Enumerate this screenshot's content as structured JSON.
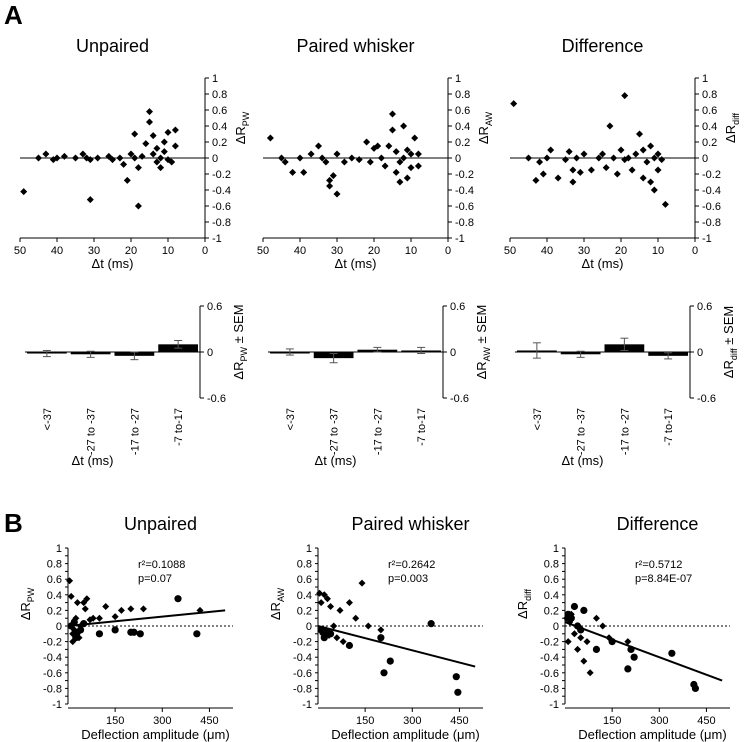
{
  "panels": {
    "a": "A",
    "b": "B"
  },
  "chart_data": [
    {
      "type": "scatter",
      "title": "Unpaired",
      "xlabel": "Δt (ms)",
      "ylabel": "ΔR",
      "ylabel_sub": "PW",
      "xlim": [
        50,
        0
      ],
      "xticks": [
        50,
        40,
        30,
        20,
        10,
        0
      ],
      "ylim": [
        -1,
        1
      ],
      "yticks": [
        -1,
        -0.8,
        -0.6,
        -0.4,
        -0.2,
        0,
        0.2,
        0.4,
        0.6,
        0.8,
        1
      ],
      "points": [
        [
          49,
          -0.42
        ],
        [
          45,
          0.0
        ],
        [
          43,
          0.05
        ],
        [
          41,
          -0.02
        ],
        [
          40,
          0.0
        ],
        [
          38,
          0.02
        ],
        [
          35,
          0.0
        ],
        [
          33,
          0.05
        ],
        [
          32,
          0.0
        ],
        [
          31,
          -0.52
        ],
        [
          31,
          -0.02
        ],
        [
          29,
          0.0
        ],
        [
          26,
          0.02
        ],
        [
          25,
          -0.02
        ],
        [
          23,
          0.0
        ],
        [
          22,
          -0.08
        ],
        [
          21,
          -0.28
        ],
        [
          20,
          0.05
        ],
        [
          19,
          0.0
        ],
        [
          19,
          0.3
        ],
        [
          18,
          -0.12
        ],
        [
          18,
          -0.6
        ],
        [
          17,
          0.02
        ],
        [
          16,
          0.18
        ],
        [
          15,
          0.58
        ],
        [
          15,
          0.45
        ],
        [
          14,
          0.05
        ],
        [
          14,
          0.28
        ],
        [
          13,
          -0.05
        ],
        [
          13,
          0.12
        ],
        [
          12,
          0.0
        ],
        [
          12,
          -0.12
        ],
        [
          11,
          0.2
        ],
        [
          11,
          0.08
        ],
        [
          10,
          -0.02
        ],
        [
          10,
          0.32
        ],
        [
          9,
          -0.05
        ],
        [
          8,
          0.35
        ],
        [
          8,
          0.15
        ]
      ]
    },
    {
      "type": "scatter",
      "title": "Paired whisker",
      "xlabel": "Δt (ms)",
      "ylabel": "ΔR",
      "ylabel_sub": "AW",
      "xlim": [
        50,
        0
      ],
      "xticks": [
        50,
        40,
        30,
        20,
        10,
        0
      ],
      "ylim": [
        -1,
        1
      ],
      "yticks": [
        -1,
        -0.8,
        -0.6,
        -0.4,
        -0.2,
        0,
        0.2,
        0.4,
        0.6,
        0.8,
        1
      ],
      "points": [
        [
          48,
          0.25
        ],
        [
          45,
          0.0
        ],
        [
          44,
          -0.05
        ],
        [
          42,
          -0.18
        ],
        [
          40,
          0.0
        ],
        [
          39,
          -0.18
        ],
        [
          37,
          0.05
        ],
        [
          35,
          0.15
        ],
        [
          34,
          0.0
        ],
        [
          33,
          -0.05
        ],
        [
          32,
          -0.28
        ],
        [
          32,
          -0.35
        ],
        [
          31,
          -0.22
        ],
        [
          30,
          0.05
        ],
        [
          30,
          -0.45
        ],
        [
          28,
          -0.05
        ],
        [
          26,
          0.0
        ],
        [
          24,
          -0.02
        ],
        [
          22,
          0.2
        ],
        [
          21,
          -0.05
        ],
        [
          20,
          0.12
        ],
        [
          19,
          0.15
        ],
        [
          18,
          0.0
        ],
        [
          17,
          -0.1
        ],
        [
          16,
          0.15
        ],
        [
          15,
          0.35
        ],
        [
          15,
          0.55
        ],
        [
          14,
          -0.18
        ],
        [
          14,
          0.08
        ],
        [
          13,
          -0.3
        ],
        [
          13,
          -0.05
        ],
        [
          12,
          0.4
        ],
        [
          12,
          0.0
        ],
        [
          11,
          0.1
        ],
        [
          11,
          -0.25
        ],
        [
          10,
          0.05
        ],
        [
          10,
          -0.12
        ],
        [
          9,
          0.25
        ],
        [
          8,
          -0.1
        ],
        [
          8,
          0.05
        ]
      ]
    },
    {
      "type": "scatter",
      "title": "Difference",
      "xlabel": "Δt (ms)",
      "ylabel": "ΔR",
      "ylabel_sub": "diff",
      "xlim": [
        50,
        0
      ],
      "xticks": [
        50,
        40,
        30,
        20,
        10,
        0
      ],
      "ylim": [
        -1,
        1
      ],
      "yticks": [
        -1,
        -0.8,
        -0.6,
        -0.4,
        -0.2,
        0,
        0.2,
        0.4,
        0.6,
        0.8,
        1
      ],
      "points": [
        [
          49,
          0.68
        ],
        [
          45,
          0.0
        ],
        [
          43,
          -0.28
        ],
        [
          42,
          -0.05
        ],
        [
          41,
          -0.2
        ],
        [
          40,
          0.0
        ],
        [
          39,
          0.1
        ],
        [
          37,
          -0.25
        ],
        [
          35,
          -0.02
        ],
        [
          34,
          0.08
        ],
        [
          33,
          -0.15
        ],
        [
          33,
          -0.3
        ],
        [
          32,
          0.0
        ],
        [
          31,
          -0.18
        ],
        [
          30,
          0.05
        ],
        [
          28,
          -0.15
        ],
        [
          26,
          0.0
        ],
        [
          25,
          0.05
        ],
        [
          24,
          -0.12
        ],
        [
          23,
          0.4
        ],
        [
          22,
          0.0
        ],
        [
          21,
          -0.2
        ],
        [
          20,
          0.1
        ],
        [
          19,
          0.78
        ],
        [
          19,
          -0.02
        ],
        [
          18,
          0.0
        ],
        [
          17,
          -0.15
        ],
        [
          16,
          0.05
        ],
        [
          15,
          0.3
        ],
        [
          14,
          -0.25
        ],
        [
          14,
          0.1
        ],
        [
          13,
          -0.05
        ],
        [
          12,
          0.15
        ],
        [
          12,
          -0.3
        ],
        [
          11,
          0.0
        ],
        [
          11,
          -0.4
        ],
        [
          10,
          0.05
        ],
        [
          10,
          -0.15
        ],
        [
          9,
          -0.02
        ],
        [
          8,
          -0.58
        ]
      ]
    },
    {
      "type": "bar",
      "title": "",
      "xlabel": "Δt (ms)",
      "ylabel": "ΔR",
      "ylabel_sub": "PW",
      "ylabel_suffix": " ± SEM",
      "categories": [
        "<-37",
        "-27 to -37",
        "-17 to -27",
        "-7 to-17"
      ],
      "values": [
        -0.02,
        -0.03,
        -0.05,
        0.1
      ],
      "errors": [
        0.04,
        0.04,
        0.05,
        0.05
      ],
      "ylim": [
        -0.6,
        0.6
      ],
      "yticks": [
        -0.6,
        0,
        0.6
      ]
    },
    {
      "type": "bar",
      "title": "",
      "xlabel": "Δt (ms)",
      "ylabel": "ΔR",
      "ylabel_sub": "AW",
      "ylabel_suffix": " ± SEM",
      "categories": [
        "<-37",
        "-27 to -37",
        "-17 to -27",
        "-7 to-17"
      ],
      "values": [
        0.0,
        -0.08,
        0.03,
        0.02
      ],
      "errors": [
        0.04,
        0.06,
        0.03,
        0.04
      ],
      "ylim": [
        -0.6,
        0.6
      ],
      "yticks": [
        -0.6,
        0,
        0.6
      ]
    },
    {
      "type": "bar",
      "title": "",
      "xlabel": "Δt (ms)",
      "ylabel": "ΔR",
      "ylabel_sub": "diff",
      "ylabel_suffix": " ± SEM",
      "categories": [
        "<-37",
        "-27 to -37",
        "-17 to -27",
        "-7 to-17"
      ],
      "values": [
        0.02,
        -0.03,
        0.1,
        -0.05
      ],
      "errors": [
        0.1,
        0.04,
        0.08,
        0.04
      ],
      "ylim": [
        -0.6,
        0.6
      ],
      "yticks": [
        -0.6,
        0,
        0.6
      ]
    },
    {
      "type": "scatter",
      "title": "Unpaired",
      "xlabel": "Deflection amplitude (μm)",
      "ylabel": "ΔR",
      "ylabel_sub": "PW",
      "xlim": [
        0,
        525
      ],
      "xticks": [
        150,
        300,
        450
      ],
      "ylim": [
        -1,
        1
      ],
      "yticks": [
        -1,
        -0.9,
        -0.8,
        -0.7,
        -0.6,
        -0.5,
        -0.4,
        -0.3,
        -0.2,
        -0.1,
        0,
        0.1,
        0.2,
        0.3,
        0.4,
        0.5,
        0.6,
        0.7,
        0.8,
        0.9,
        1
      ],
      "annotation": [
        "r²=0.1088",
        "p=0.07"
      ],
      "fit": [
        [
          0,
          0.0
        ],
        [
          500,
          0.2
        ]
      ],
      "diamonds": [
        [
          5,
          0.58
        ],
        [
          10,
          0.38
        ],
        [
          15,
          -0.1
        ],
        [
          15,
          -0.2
        ],
        [
          20,
          -0.05
        ],
        [
          25,
          0.1
        ],
        [
          30,
          0.3
        ],
        [
          35,
          -0.15
        ],
        [
          40,
          0.0
        ],
        [
          50,
          0.3
        ],
        [
          55,
          0.22
        ],
        [
          60,
          0.35
        ],
        [
          70,
          0.08
        ],
        [
          80,
          0.1
        ],
        [
          100,
          0.1
        ],
        [
          120,
          0.25
        ],
        [
          150,
          0.12
        ],
        [
          170,
          0.2
        ],
        [
          200,
          0.22
        ],
        [
          240,
          0.22
        ],
        [
          420,
          0.2
        ]
      ],
      "circles": [
        [
          10,
          0.0
        ],
        [
          20,
          0.05
        ],
        [
          25,
          -0.15
        ],
        [
          30,
          -0.08
        ],
        [
          40,
          -0.05
        ],
        [
          50,
          0.03
        ],
        [
          100,
          -0.1
        ],
        [
          150,
          -0.05
        ],
        [
          200,
          -0.08
        ],
        [
          210,
          -0.08
        ],
        [
          230,
          -0.1
        ],
        [
          350,
          0.35
        ],
        [
          410,
          -0.1
        ]
      ]
    },
    {
      "type": "scatter",
      "title": "Paired whisker",
      "xlabel": "Deflection amplitude (μm)",
      "ylabel": "ΔR",
      "ylabel_sub": "AW",
      "xlim": [
        0,
        525
      ],
      "xticks": [
        150,
        300,
        450
      ],
      "ylim": [
        -1,
        1
      ],
      "yticks": [
        -1,
        -0.9,
        -0.8,
        -0.7,
        -0.6,
        -0.5,
        -0.4,
        -0.3,
        -0.2,
        -0.1,
        0,
        0.1,
        0.2,
        0.3,
        0.4,
        0.5,
        0.6,
        0.7,
        0.8,
        0.9,
        1
      ],
      "annotation": [
        "r²=0.2642",
        "p=0.003"
      ],
      "fit": [
        [
          0,
          0.0
        ],
        [
          500,
          -0.52
        ]
      ],
      "diamonds": [
        [
          5,
          0.42
        ],
        [
          10,
          0.3
        ],
        [
          15,
          -0.1
        ],
        [
          20,
          0.4
        ],
        [
          25,
          -0.05
        ],
        [
          30,
          0.35
        ],
        [
          35,
          -0.12
        ],
        [
          40,
          0.25
        ],
        [
          50,
          0.0
        ],
        [
          60,
          -0.15
        ],
        [
          70,
          0.2
        ],
        [
          80,
          -0.2
        ],
        [
          100,
          0.3
        ],
        [
          120,
          0.1
        ],
        [
          140,
          0.55
        ],
        [
          160,
          0.0
        ],
        [
          200,
          -0.05
        ]
      ],
      "circles": [
        [
          10,
          -0.05
        ],
        [
          20,
          -0.15
        ],
        [
          30,
          -0.08
        ],
        [
          40,
          -0.1
        ],
        [
          100,
          -0.25
        ],
        [
          200,
          -0.15
        ],
        [
          210,
          -0.6
        ],
        [
          230,
          -0.45
        ],
        [
          360,
          0.03
        ],
        [
          440,
          -0.65
        ],
        [
          445,
          -0.85
        ]
      ]
    },
    {
      "type": "scatter",
      "title": "Difference",
      "xlabel": "Deflection amplitude (μm)",
      "ylabel": "ΔR",
      "ylabel_sub": "diff",
      "xlim": [
        0,
        525
      ],
      "xticks": [
        150,
        300,
        450
      ],
      "ylim": [
        -1,
        1
      ],
      "yticks": [
        -1,
        -0.9,
        -0.8,
        -0.7,
        -0.6,
        -0.5,
        -0.4,
        -0.3,
        -0.2,
        -0.1,
        0,
        0.1,
        0.2,
        0.3,
        0.4,
        0.5,
        0.6,
        0.7,
        0.8,
        0.9,
        1
      ],
      "annotation": [
        "r²=0.5712",
        "p=8.84E-07"
      ],
      "fit": [
        [
          0,
          0.05
        ],
        [
          500,
          -0.7
        ]
      ],
      "diamonds": [
        [
          5,
          0.1
        ],
        [
          10,
          -0.2
        ],
        [
          15,
          0.05
        ],
        [
          20,
          0.15
        ],
        [
          30,
          -0.1
        ],
        [
          40,
          -0.3
        ],
        [
          50,
          -0.15
        ],
        [
          60,
          -0.45
        ],
        [
          70,
          -0.2
        ],
        [
          80,
          -0.6
        ],
        [
          100,
          0.1
        ],
        [
          120,
          0.0
        ],
        [
          140,
          -0.15
        ],
        [
          200,
          -0.2
        ]
      ],
      "circles": [
        [
          10,
          0.15
        ],
        [
          20,
          0.1
        ],
        [
          30,
          0.25
        ],
        [
          40,
          0.0
        ],
        [
          50,
          -0.05
        ],
        [
          60,
          0.2
        ],
        [
          100,
          -0.3
        ],
        [
          150,
          -0.2
        ],
        [
          200,
          -0.55
        ],
        [
          210,
          -0.3
        ],
        [
          220,
          -0.4
        ],
        [
          340,
          -0.35
        ],
        [
          410,
          -0.75
        ],
        [
          415,
          -0.8
        ]
      ]
    }
  ]
}
